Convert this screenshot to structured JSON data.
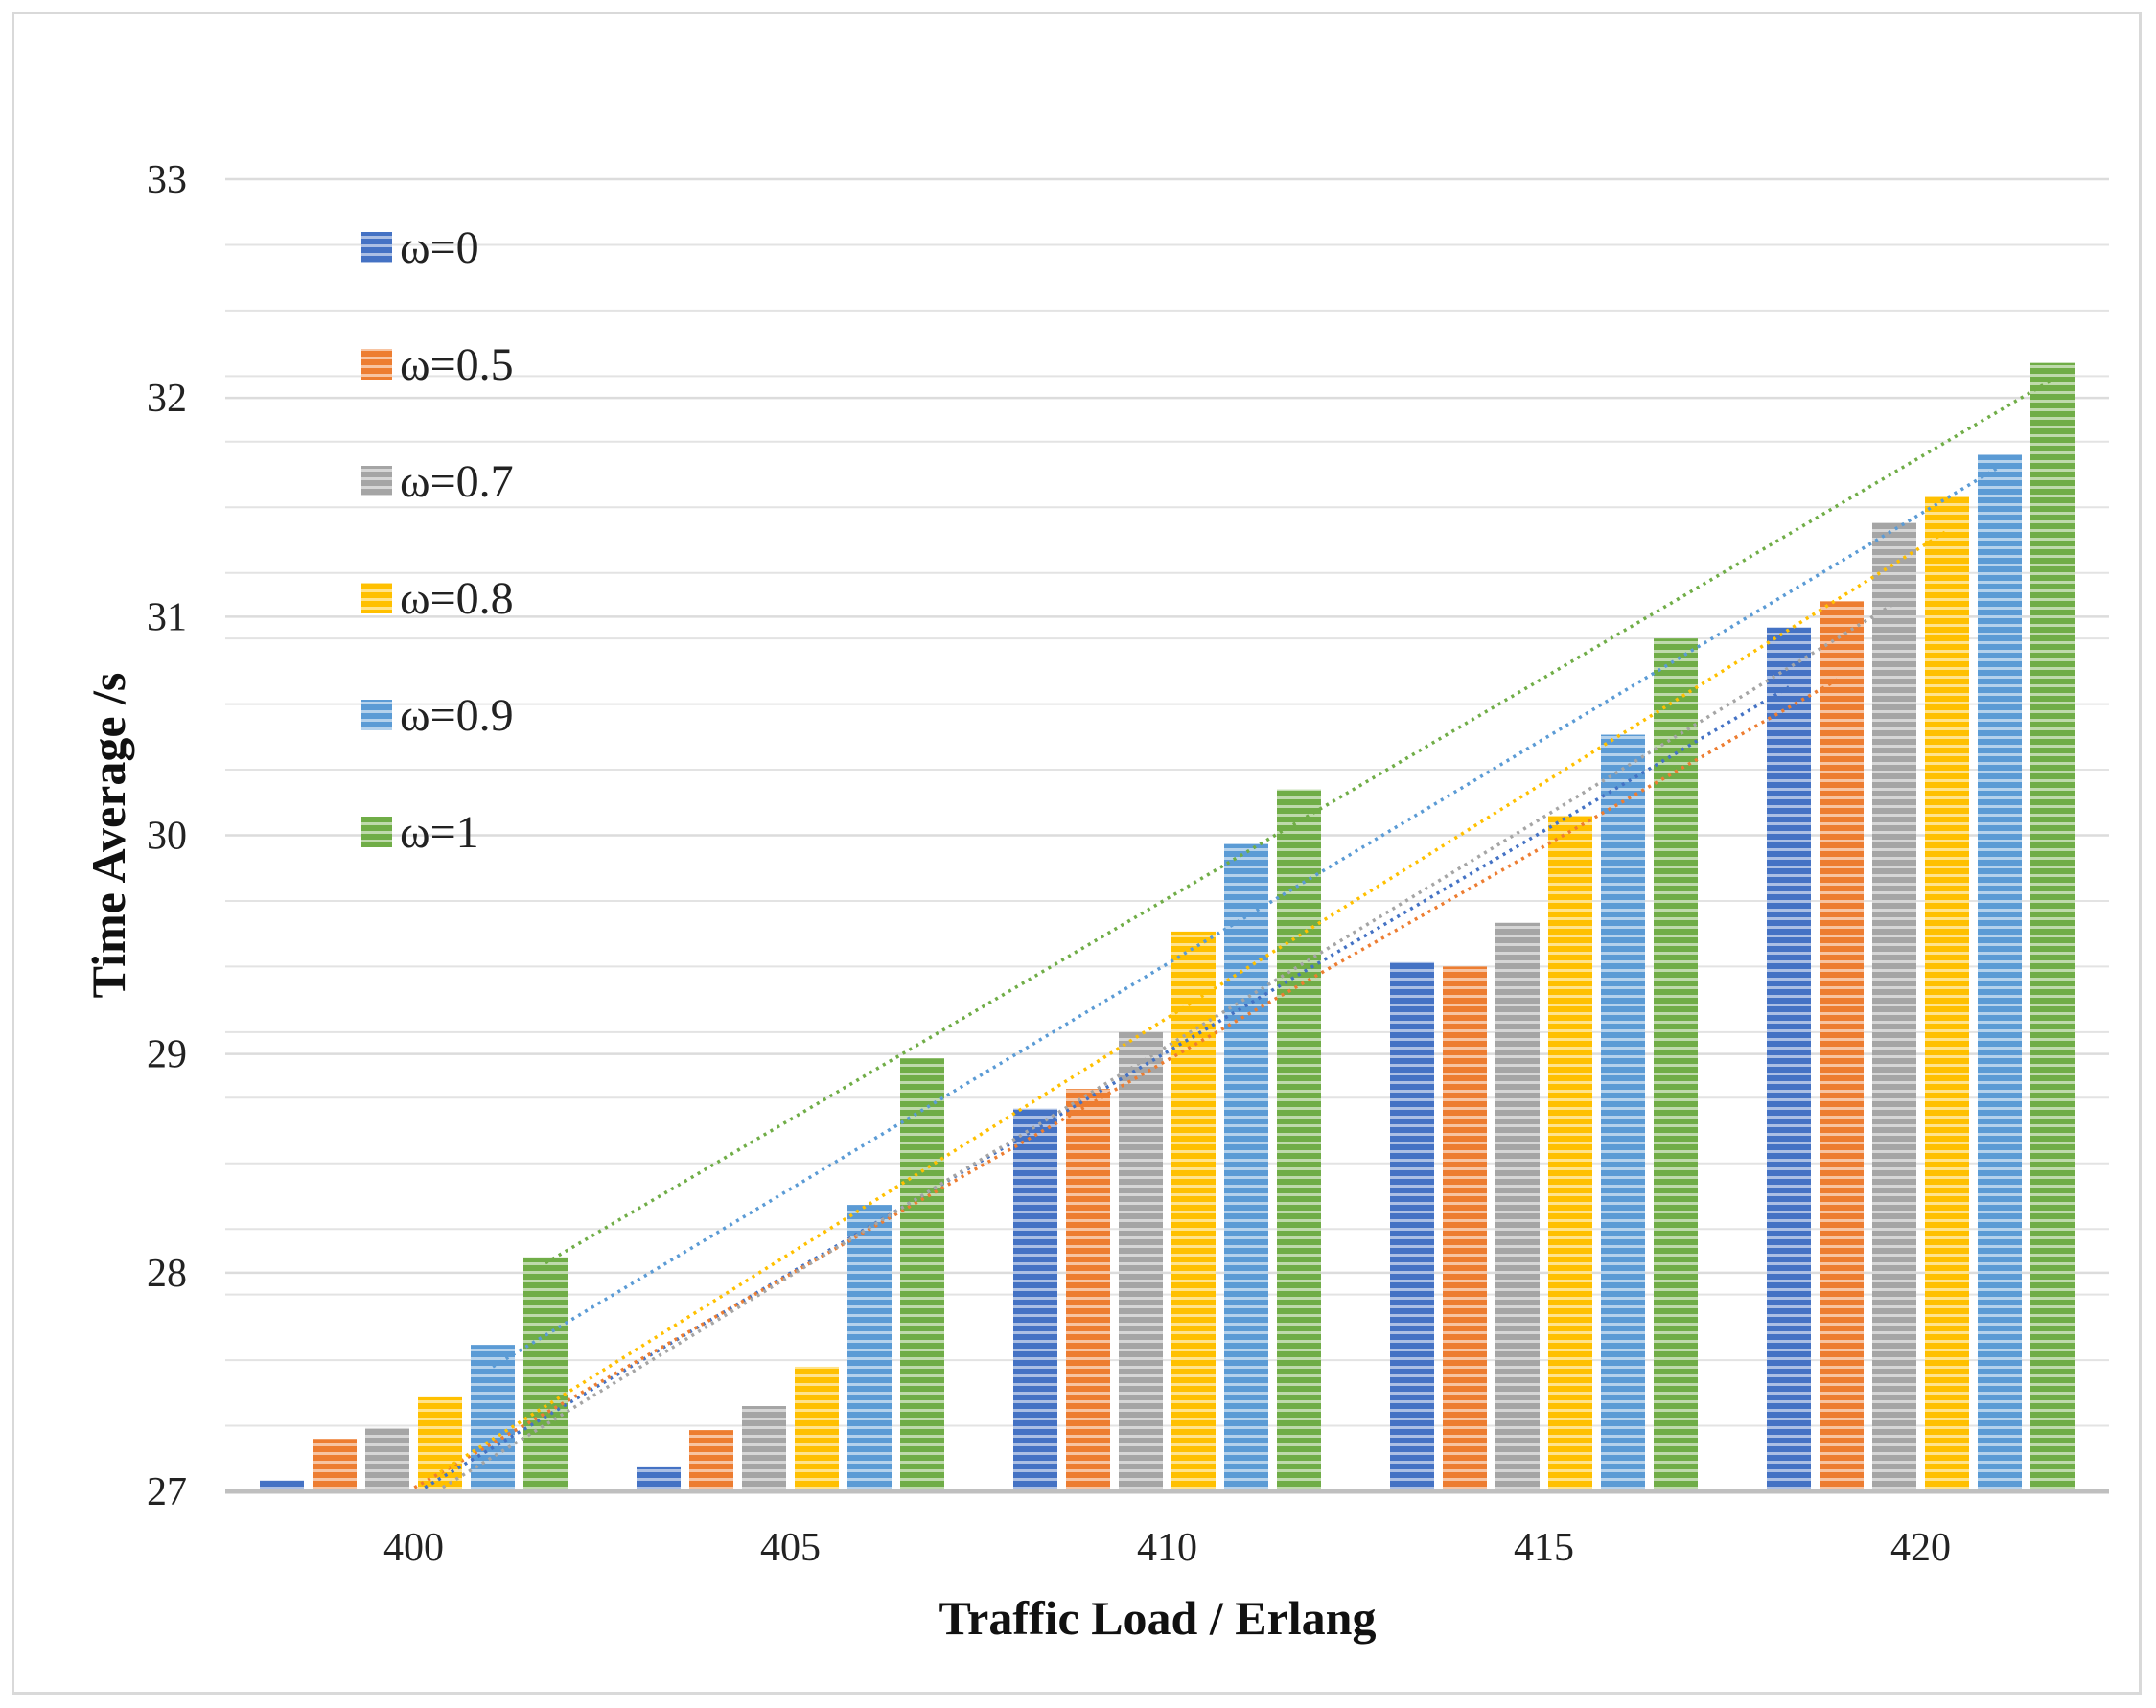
{
  "chart_data": {
    "type": "bar",
    "title": "",
    "xlabel": "Traffic Load / Erlang",
    "ylabel": "Time Average /s",
    "categories": [
      "400",
      "405",
      "410",
      "415",
      "420"
    ],
    "ylim": [
      27,
      33
    ],
    "yticks": [
      "27",
      "28",
      "29",
      "30",
      "31",
      "32",
      "33"
    ],
    "ytick_values": [
      27,
      28,
      29,
      30,
      31,
      32,
      33
    ],
    "minor_grid_step": 0.3,
    "legend_position": "top-left",
    "series": [
      {
        "name": "ω=0",
        "color": "#4472C4",
        "values": [
          27.05,
          27.11,
          28.75,
          29.42,
          30.95
        ]
      },
      {
        "name": "ω=0.5",
        "color": "#ED7D31",
        "values": [
          27.24,
          27.28,
          28.84,
          29.4,
          31.07
        ]
      },
      {
        "name": "ω=0.7",
        "color": "#A5A5A5",
        "values": [
          27.29,
          27.39,
          29.1,
          29.6,
          31.43
        ]
      },
      {
        "name": "ω=0.8",
        "color": "#FFC000",
        "values": [
          27.43,
          27.57,
          29.56,
          30.09,
          31.55
        ]
      },
      {
        "name": "ω=0.9",
        "color": "#5B9BD5",
        "values": [
          27.67,
          28.31,
          29.96,
          30.46,
          31.74
        ]
      },
      {
        "name": "ω=1",
        "color": "#70AD47",
        "values": [
          28.07,
          28.98,
          30.21,
          30.9,
          32.16
        ]
      }
    ]
  }
}
